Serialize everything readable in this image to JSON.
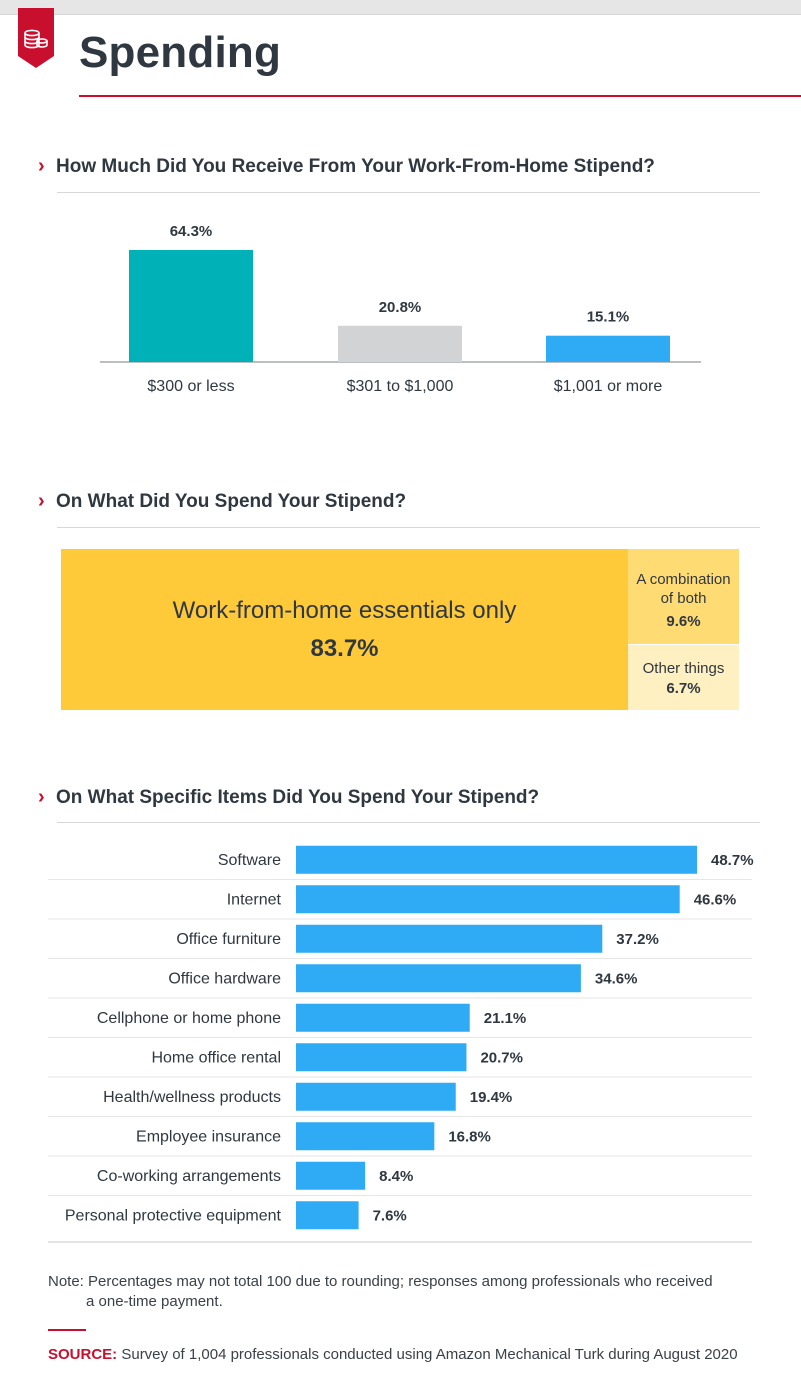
{
  "header": {
    "title": "Spending",
    "badge_icon": "coins-stack-icon",
    "accent_color": "#c8102e"
  },
  "chart_data": [
    {
      "type": "bar",
      "title": "How Much Did You Receive From Your Work-From-Home Stipend?",
      "categories": [
        "$300 or less",
        "$301 to $1,000",
        "$1,001 or more"
      ],
      "values": [
        64.3,
        20.8,
        15.1
      ],
      "value_labels": [
        "64.3%",
        "20.8%",
        "15.1%"
      ],
      "colors": [
        "#00b2b7",
        "#d2d3d5",
        "#2fabf5"
      ],
      "ylim": [
        0,
        64.3
      ],
      "grid": false
    },
    {
      "type": "treemap",
      "title": "On What Did You Spend Your Stipend?",
      "items": [
        {
          "label": "Work-from-home essentials only",
          "value": 83.7,
          "value_label": "83.7%",
          "color": "#ffca3a"
        },
        {
          "label": "A combination of both",
          "value": 9.6,
          "value_label": "9.6%",
          "color": "#ffdb73"
        },
        {
          "label": "Other things",
          "value": 6.7,
          "value_label": "6.7%",
          "color": "#fff0c2"
        }
      ]
    },
    {
      "type": "bar",
      "orientation": "horizontal",
      "title": "On What Specific Items Did You Spend Your Stipend?",
      "categories": [
        "Software",
        "Internet",
        "Office furniture",
        "Office hardware",
        "Cellphone or home phone",
        "Home office rental",
        "Health/wellness products",
        "Employee insurance",
        "Co-working arrangements",
        "Personal protective equipment"
      ],
      "values": [
        48.7,
        46.6,
        37.2,
        34.6,
        21.1,
        20.7,
        19.4,
        16.8,
        8.4,
        7.6
      ],
      "value_labels": [
        "48.7%",
        "46.6%",
        "37.2%",
        "34.6%",
        "21.1%",
        "20.7%",
        "19.4%",
        "16.8%",
        "8.4%",
        "7.6%"
      ],
      "color": "#2fabf5",
      "xlim": [
        0,
        48.7
      ],
      "grid": false
    }
  ],
  "footer": {
    "note_line1": "Note: Percentages may not total 100 due to rounding; responses among professionals who received",
    "note_line2": "a one-time payment.",
    "source_label": "SOURCE:",
    "source_text": "Survey of 1,004 professionals conducted using Amazon Mechanical Turk during August 2020"
  }
}
